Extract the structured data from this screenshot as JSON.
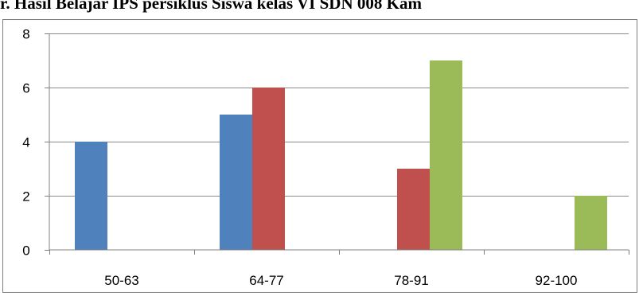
{
  "chart_data": {
    "type": "bar",
    "title": "r. Hasil Belajar IPS persiklus Siswa kelas VI SDN 008 Kam",
    "categories": [
      "50-63",
      "64-77",
      "78-91",
      "92-100"
    ],
    "series": [
      {
        "values": [
          4,
          5,
          0,
          0
        ],
        "color": "#4f81bd"
      },
      {
        "values": [
          0,
          6,
          3,
          0
        ],
        "color": "#c0504d"
      },
      {
        "values": [
          0,
          0,
          7,
          2
        ],
        "color": "#9bbb59"
      }
    ],
    "y_ticks": [
      "0",
      "2",
      "4",
      "6",
      "8"
    ],
    "ylim": [
      0,
      8
    ],
    "grid": true,
    "legend": "none"
  }
}
